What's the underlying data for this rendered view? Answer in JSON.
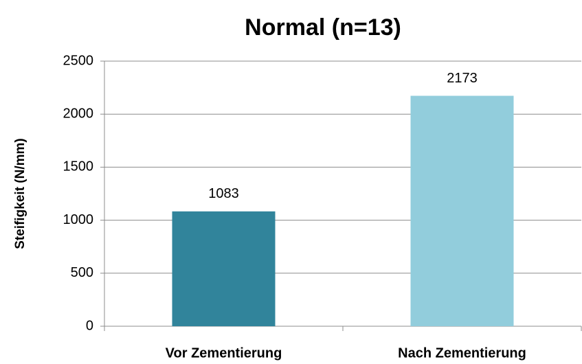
{
  "chart_data": {
    "type": "bar",
    "title": "Normal (n=13)",
    "y_label": "Steifigkeit (N/mm)",
    "categories": [
      "Vor Zementierung",
      "Nach Zementierung"
    ],
    "values": [
      1083,
      2173
    ],
    "colors": [
      "#31849b",
      "#92cddc"
    ],
    "ylim": [
      0,
      2500
    ],
    "yticks": [
      0,
      500,
      1000,
      1500,
      2000,
      2500
    ],
    "grid": true
  }
}
